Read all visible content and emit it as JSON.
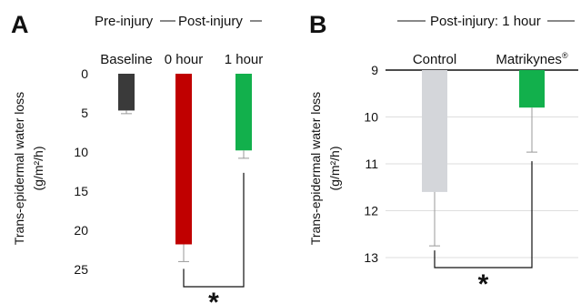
{
  "chart_data": [
    {
      "type": "bar",
      "panel_label": "A",
      "group_labels": [
        "Pre-injury",
        "Post-injury"
      ],
      "categories": [
        "Baseline",
        "0 hour",
        "1 hour"
      ],
      "values": [
        4.7,
        21.8,
        9.8
      ],
      "errors": [
        0.4,
        2.2,
        1.0
      ],
      "colors": [
        "#3a3a3a",
        "#c00000",
        "#12b04c"
      ],
      "ylabel_line1": "Trans-epidermal water loss",
      "ylabel_line2": "(g/m²/h)",
      "yticks": [
        "0",
        "5",
        "10",
        "15",
        "20",
        "25"
      ],
      "ylim": [
        0,
        25
      ],
      "y_inverted": true,
      "significance": "*"
    },
    {
      "type": "bar",
      "panel_label": "B",
      "group_label": "Post-injury: 1 hour",
      "categories": [
        "Control",
        "Matrikynes"
      ],
      "category_mark": "®",
      "values": [
        11.6,
        9.8
      ],
      "errors": [
        1.15,
        0.95
      ],
      "colors": [
        "#d4d6da",
        "#12b04c"
      ],
      "ylabel_line1": "Trans-epidermal water loss",
      "ylabel_line2": "(g/m²/h)",
      "yticks": [
        "9",
        "10",
        "11",
        "12",
        "13"
      ],
      "ylim": [
        9,
        13
      ],
      "y_inverted": true,
      "grid": true,
      "significance": "*"
    }
  ]
}
